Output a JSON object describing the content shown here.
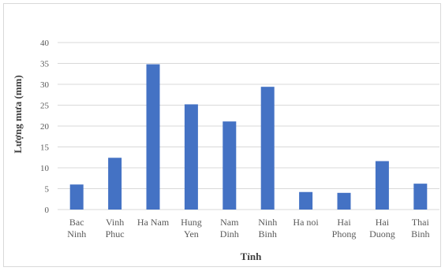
{
  "chart_data": {
    "type": "bar",
    "title": "",
    "xlabel": "Tỉnh",
    "ylabel": "Lượng mưa (mm)",
    "categories": [
      [
        "Bac",
        "Ninh"
      ],
      [
        "Vinh",
        "Phuc"
      ],
      [
        "Ha Nam"
      ],
      [
        "Hung",
        "Yen"
      ],
      [
        "Nam",
        "Dinh"
      ],
      [
        "Ninh",
        "Binh"
      ],
      [
        "Ha noi"
      ],
      [
        "Hai",
        "Phong"
      ],
      [
        "Hai",
        "Duong"
      ],
      [
        "Thai",
        "Binh"
      ]
    ],
    "values": [
      6.0,
      12.4,
      34.8,
      25.2,
      21.1,
      29.4,
      4.2,
      4.0,
      11.6,
      6.2
    ],
    "ylim": [
      0,
      40
    ],
    "yticks": [
      0,
      5,
      10,
      15,
      20,
      25,
      30,
      35,
      40
    ],
    "grid": true,
    "legend": "none",
    "bar_color": "#4472c4",
    "grid_color": "#d9d9d9"
  }
}
